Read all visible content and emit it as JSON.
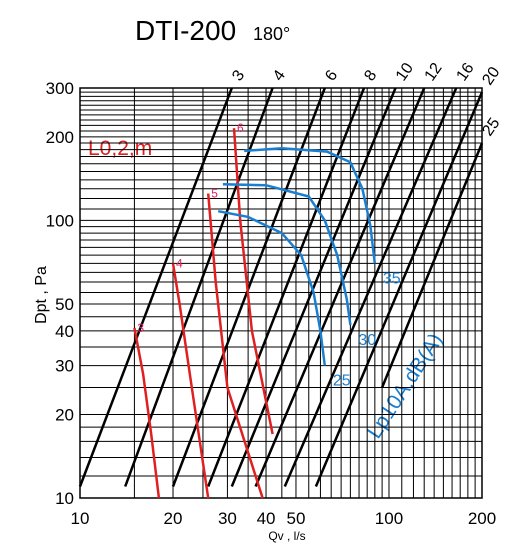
{
  "chart_data": {
    "type": "line",
    "title": "DTI-200",
    "subtitle": "180°",
    "xlabel": "Qv , l/s",
    "ylabel": "Dpt , Pa",
    "x_scale": "log",
    "y_scale": "log",
    "xlim": [
      10,
      200
    ],
    "ylim": [
      10,
      300
    ],
    "grid": true,
    "x_ticks": [
      10,
      20,
      30,
      40,
      50,
      100,
      200
    ],
    "y_ticks": [
      10,
      20,
      30,
      40,
      50,
      100,
      200,
      300
    ],
    "throw_label": "L0,2,m",
    "noise_label": "Lp10A,dB(A)",
    "colors": {
      "axis_lines": "#000000",
      "throw": "#e02020",
      "noise": "#1a7fd0",
      "throw_text": "#e0206a"
    },
    "flow_lines": [
      {
        "label": "3",
        "points": [
          [
            10,
            11
          ],
          [
            31,
            300
          ]
        ]
      },
      {
        "label": "4",
        "points": [
          [
            14,
            11
          ],
          [
            42,
            300
          ]
        ]
      },
      {
        "label": "6",
        "points": [
          [
            20,
            11
          ],
          [
            62,
            300
          ]
        ]
      },
      {
        "label": "8",
        "points": [
          [
            26,
            11
          ],
          [
            83,
            300
          ]
        ]
      },
      {
        "label": "10",
        "points": [
          [
            31,
            11
          ],
          [
            105,
            300
          ]
        ]
      },
      {
        "label": "12",
        "points": [
          [
            37,
            11
          ],
          [
            130,
            300
          ]
        ]
      },
      {
        "label": "16",
        "points": [
          [
            46,
            11
          ],
          [
            165,
            300
          ]
        ]
      },
      {
        "label": "20",
        "points": [
          [
            58,
            11
          ],
          [
            200,
            290
          ]
        ]
      },
      {
        "label": "25",
        "points": [
          [
            95,
            25
          ],
          [
            200,
            190
          ]
        ]
      }
    ],
    "throw_curves": [
      {
        "label": "3",
        "points": [
          [
            15.0,
            41
          ],
          [
            16.0,
            28
          ],
          [
            17.0,
            17
          ],
          [
            18.0,
            10
          ]
        ]
      },
      {
        "label": "4",
        "points": [
          [
            20.0,
            70
          ],
          [
            21.0,
            50
          ],
          [
            23.0,
            25
          ],
          [
            26.0,
            10
          ]
        ]
      },
      {
        "label": "5",
        "points": [
          [
            26.0,
            125
          ],
          [
            27.5,
            60
          ],
          [
            30.0,
            25
          ],
          [
            39.0,
            10
          ]
        ]
      },
      {
        "label": "6",
        "points": [
          [
            31.5,
            215
          ],
          [
            33.0,
            100
          ],
          [
            36.0,
            40
          ],
          [
            42.0,
            17
          ]
        ]
      }
    ],
    "noise_curves": [
      {
        "label": "25",
        "points": [
          [
            28,
            108
          ],
          [
            35,
            103
          ],
          [
            45,
            90
          ],
          [
            52,
            75
          ],
          [
            57,
            55
          ],
          [
            60,
            40
          ],
          [
            62,
            30
          ]
        ]
      },
      {
        "label": "30",
        "points": [
          [
            29,
            135
          ],
          [
            40,
            134
          ],
          [
            55,
            122
          ],
          [
            62,
            100
          ],
          [
            68,
            75
          ],
          [
            73,
            52
          ],
          [
            75,
            42
          ]
        ]
      },
      {
        "label": "35",
        "points": [
          [
            34,
            178
          ],
          [
            45,
            182
          ],
          [
            63,
            177
          ],
          [
            75,
            162
          ],
          [
            82,
            130
          ],
          [
            87,
            96
          ],
          [
            90,
            70
          ]
        ]
      }
    ]
  }
}
